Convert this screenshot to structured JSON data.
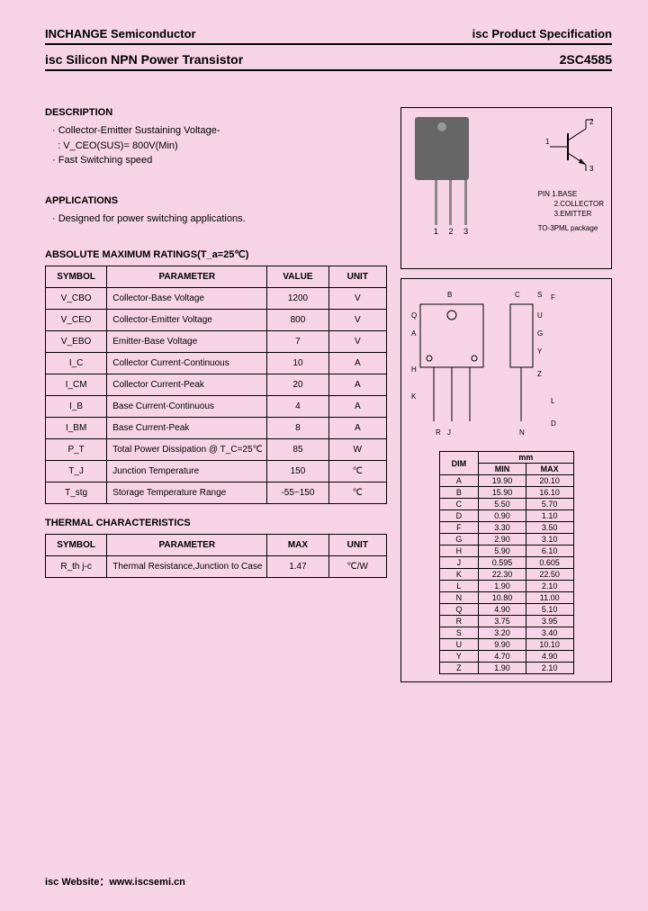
{
  "header": {
    "company": "INCHANGE Semiconductor",
    "docType": "isc Product Specification",
    "productTitle": "isc Silicon NPN Power Transistor",
    "partNumber": "2SC4585"
  },
  "description": {
    "title": "DESCRIPTION",
    "items": [
      "Collector-Emitter Sustaining Voltage-",
      ": V_CEO(SUS)= 800V(Min)",
      "Fast Switching speed"
    ]
  },
  "applications": {
    "title": "APPLICATIONS",
    "text": "Designed for power switching applications."
  },
  "ratings": {
    "title": "ABSOLUTE MAXIMUM RATINGS(T_a=25℃)",
    "headers": [
      "SYMBOL",
      "PARAMETER",
      "VALUE",
      "UNIT"
    ],
    "rows": [
      {
        "symbol": "V_CBO",
        "param": "Collector-Base Voltage",
        "value": "1200",
        "unit": "V"
      },
      {
        "symbol": "V_CEO",
        "param": "Collector-Emitter Voltage",
        "value": "800",
        "unit": "V"
      },
      {
        "symbol": "V_EBO",
        "param": "Emitter-Base Voltage",
        "value": "7",
        "unit": "V"
      },
      {
        "symbol": "I_C",
        "param": "Collector Current-Continuous",
        "value": "10",
        "unit": "A"
      },
      {
        "symbol": "I_CM",
        "param": "Collector Current-Peak",
        "value": "20",
        "unit": "A"
      },
      {
        "symbol": "I_B",
        "param": "Base Current-Continuous",
        "value": "4",
        "unit": "A"
      },
      {
        "symbol": "I_BM",
        "param": "Base Current-Peak",
        "value": "8",
        "unit": "A"
      },
      {
        "symbol": "P_T",
        "param": "Total Power Dissipation @ T_C=25℃",
        "value": "85",
        "unit": "W"
      },
      {
        "symbol": "T_J",
        "param": "Junction Temperature",
        "value": "150",
        "unit": "℃"
      },
      {
        "symbol": "T_stg",
        "param": "Storage Temperature Range",
        "value": "-55~150",
        "unit": "℃"
      }
    ]
  },
  "thermal": {
    "title": "THERMAL CHARACTERISTICS",
    "headers": [
      "SYMBOL",
      "PARAMETER",
      "MAX",
      "UNIT"
    ],
    "rows": [
      {
        "symbol": "R_th j-c",
        "param": "Thermal Resistance,Junction to Case",
        "max": "1.47",
        "unit": "℃/W"
      }
    ]
  },
  "package": {
    "pins": [
      "1",
      "2",
      "3"
    ],
    "pinLabels": {
      "title": "PIN",
      "items": [
        "1.BASE",
        "2.COLLECTOR",
        "3.EMITTER"
      ],
      "pkg": "TO-3PML package"
    }
  },
  "dimensions": {
    "unitHeader": "mm",
    "headers": [
      "DIM",
      "MIN",
      "MAX"
    ],
    "rows": [
      [
        "A",
        "19.90",
        "20.10"
      ],
      [
        "B",
        "15.90",
        "16.10"
      ],
      [
        "C",
        "5.50",
        "5.70"
      ],
      [
        "D",
        "0.90",
        "1.10"
      ],
      [
        "F",
        "3.30",
        "3.50"
      ],
      [
        "G",
        "2.90",
        "3.10"
      ],
      [
        "H",
        "5.90",
        "6.10"
      ],
      [
        "J",
        "0.595",
        "0.605"
      ],
      [
        "K",
        "22.30",
        "22.50"
      ],
      [
        "L",
        "1.90",
        "2.10"
      ],
      [
        "N",
        "10.80",
        "11.00"
      ],
      [
        "Q",
        "4.90",
        "5.10"
      ],
      [
        "R",
        "3.75",
        "3.95"
      ],
      [
        "S",
        "3.20",
        "3.40"
      ],
      [
        "U",
        "9.90",
        "10.10"
      ],
      [
        "Y",
        "4.70",
        "4.90"
      ],
      [
        "Z",
        "1.90",
        "2.10"
      ]
    ]
  },
  "footer": {
    "label": "isc Website：",
    "url": "www.iscsemi.cn"
  },
  "colors": {
    "background": "#f7d4e5",
    "text": "#000000",
    "border": "#000000"
  }
}
